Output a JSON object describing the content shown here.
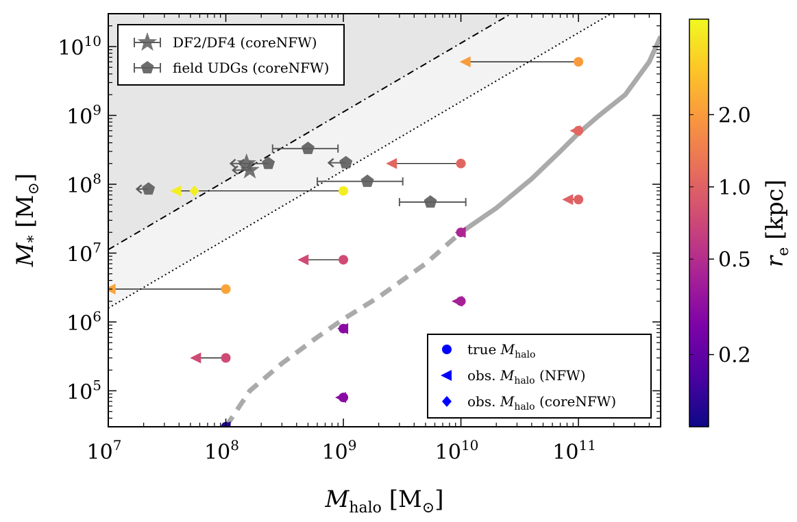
{
  "chart_data": {
    "type": "scatter",
    "title": "",
    "xlabel": "M_halo [M_⊙]",
    "ylabel": "M_* [M_⊙]",
    "xlabel_parts": {
      "main": "M",
      "sub": "halo",
      "unit": " [M",
      "unit_sub": "⊙",
      "close": "]"
    },
    "ylabel_parts": {
      "main": "M",
      "sub": "*",
      "unit": " [M",
      "unit_sub": "⊙",
      "close": "]"
    },
    "xscale": "log",
    "yscale": "log",
    "xlim": [
      10000000.0,
      500000000000.0
    ],
    "ylim": [
      30000.0,
      30000000000.0
    ],
    "x_ticks": [
      {
        "value": 10000000.0,
        "base": "10",
        "exp": "7"
      },
      {
        "value": 100000000.0,
        "base": "10",
        "exp": "8"
      },
      {
        "value": 1000000000.0,
        "base": "10",
        "exp": "9"
      },
      {
        "value": 10000000000.0,
        "base": "10",
        "exp": "10"
      },
      {
        "value": 100000000000.0,
        "base": "10",
        "exp": "11"
      }
    ],
    "y_ticks": [
      {
        "value": 100000.0,
        "base": "10",
        "exp": "5"
      },
      {
        "value": 1000000.0,
        "base": "10",
        "exp": "6"
      },
      {
        "value": 10000000.0,
        "base": "10",
        "exp": "7"
      },
      {
        "value": 100000000.0,
        "base": "10",
        "exp": "8"
      },
      {
        "value": 1000000000.0,
        "base": "10",
        "exp": "9"
      },
      {
        "value": 10000000000.0,
        "base": "10",
        "exp": "10"
      }
    ],
    "colorbar": {
      "label": "r_e [kpc]",
      "label_parts": {
        "main": "r",
        "sub": "e",
        "unit": " [kpc]"
      },
      "scale": "log",
      "range": [
        0.1,
        5.0
      ],
      "ticks": [
        {
          "value": 0.2,
          "label": "0.2"
        },
        {
          "value": 0.5,
          "label": "0.5"
        },
        {
          "value": 1.0,
          "label": "1.0"
        },
        {
          "value": 2.0,
          "label": "2.0"
        }
      ]
    },
    "regions": [
      {
        "name": "upper-region",
        "line_logy_at_x7": 7.05,
        "slope": 1,
        "fill": "#e6e6e6",
        "line_style": "dashdot"
      },
      {
        "name": "middle-region",
        "line_logy_at_x7": 6.2,
        "slope": 1,
        "fill": "#f3f3f3",
        "line_style": "dotted"
      }
    ],
    "relation_curve": {
      "dashed": [
        [
          100000000.0,
          30000.0
        ],
        [
          160000000.0,
          100000.0
        ],
        [
          300000000.0,
          250000.0
        ],
        [
          600000000.0,
          600000.0
        ],
        [
          1000000000.0,
          1100000.0
        ],
        [
          2000000000.0,
          2300000.0
        ],
        [
          5000000000.0,
          7000000.0
        ],
        [
          10000000000.0,
          20000000.0
        ]
      ],
      "solid": [
        [
          10000000000.0,
          20000000.0
        ],
        [
          20000000000.0,
          45000000.0
        ],
        [
          40000000000.0,
          120000000.0
        ],
        [
          70000000000.0,
          300000000.0
        ],
        [
          100000000000.0,
          550000000.0
        ],
        [
          150000000000.0,
          1000000000.0
        ],
        [
          250000000000.0,
          2000000000.0
        ],
        [
          400000000000.0,
          6000000000.0
        ],
        [
          500000000000.0,
          14000000000.0
        ]
      ]
    },
    "series": [
      {
        "name": "true M_halo",
        "marker": "circle",
        "points": [
          {
            "x": 100000000000.0,
            "y": 6000000000.0,
            "re": 2.0
          },
          {
            "x": 100000000000.0,
            "y": 600000000.0,
            "re": 1.05
          },
          {
            "x": 100000000000.0,
            "y": 60000000.0,
            "re": 1.0
          },
          {
            "x": 10000000000.0,
            "y": 200000000.0,
            "re": 1.05
          },
          {
            "x": 10000000000.0,
            "y": 20000000.0,
            "re": 0.45
          },
          {
            "x": 10000000000.0,
            "y": 2000000.0,
            "re": 0.42
          },
          {
            "x": 1000000000.0,
            "y": 80000000.0,
            "re": 4.5
          },
          {
            "x": 1000000000.0,
            "y": 8000000.0,
            "re": 0.75
          },
          {
            "x": 1000000000.0,
            "y": 800000.0,
            "re": 0.3
          },
          {
            "x": 1000000000.0,
            "y": 80000.0,
            "re": 0.3
          },
          {
            "x": 100000000.0,
            "y": 3000000.0,
            "re": 2.2
          },
          {
            "x": 100000000.0,
            "y": 300000.0,
            "re": 0.75
          },
          {
            "x": 100000000.0,
            "y": 30000.0,
            "re": 0.12
          }
        ]
      },
      {
        "name": "obs. M_halo (NFW)",
        "marker": "triangle-left",
        "points": [
          {
            "x": 11000000000.0,
            "y": 6000000000.0,
            "re": 2.0,
            "from": 100000000000.0
          },
          {
            "x": 95000000000.0,
            "y": 600000000.0,
            "re": 1.05,
            "from": 100000000000.0
          },
          {
            "x": 82000000000.0,
            "y": 60000000.0,
            "re": 1.0,
            "from": 100000000000.0
          },
          {
            "x": 2600000000.0,
            "y": 200000000.0,
            "re": 1.05,
            "from": 10000000000.0
          },
          {
            "x": 10000000000.0,
            "y": 20000000.0,
            "re": 0.45,
            "from": 10000000000.0
          },
          {
            "x": 9400000000.0,
            "y": 2000000.0,
            "re": 0.42,
            "from": 10000000000.0
          },
          {
            "x": 38000000.0,
            "y": 80000000.0,
            "re": 4.5,
            "from": 1000000000.0
          },
          {
            "x": 460000000.0,
            "y": 8000000.0,
            "re": 0.75,
            "from": 1000000000.0
          },
          {
            "x": 1000000000.0,
            "y": 800000.0,
            "re": 0.3,
            "from": 1000000000.0
          },
          {
            "x": 960000000.0,
            "y": 80000.0,
            "re": 0.3,
            "from": 1000000000.0
          },
          {
            "x": 10500000.0,
            "y": 3000000.0,
            "re": 2.2,
            "from": 100000000.0
          },
          {
            "x": 56000000.0,
            "y": 300000.0,
            "re": 0.75,
            "from": 100000000.0
          },
          {
            "x": 100000000.0,
            "y": 30000.0,
            "re": 0.12,
            "from": 100000000.0
          }
        ]
      },
      {
        "name": "obs. M_halo (coreNFW)",
        "marker": "diamond",
        "points": [
          {
            "x": 54000000.0,
            "y": 80000000.0,
            "re": 4.5
          }
        ]
      },
      {
        "name": "DF2/DF4 (coreNFW)",
        "marker": "star",
        "color": "#5c5c5c",
        "points": [
          {
            "x": 150000000.0,
            "y": 200000000.0,
            "xlow": 110000000.0
          },
          {
            "x": 160000000.0,
            "y": 160000000.0,
            "xlow": 115000000.0
          }
        ]
      },
      {
        "name": "field UDGs (coreNFW)",
        "marker": "pentagon",
        "color": "#5c5c5c",
        "points": [
          {
            "x": 500000000.0,
            "y": 330000000.0,
            "xlow": 250000000.0,
            "xhigh": 900000000.0
          },
          {
            "x": 230000000.0,
            "y": 200000000.0,
            "xlow": 130000000.0
          },
          {
            "x": 1050000000.0,
            "y": 205000000.0,
            "xlow": 750000000.0
          },
          {
            "x": 22000000.0,
            "y": 85000000.0,
            "xlow": 17500000.0
          },
          {
            "x": 1600000000.0,
            "y": 110000000.0,
            "xlow": 600000000.0,
            "xhigh": 3200000000.0
          },
          {
            "x": 5500000000.0,
            "y": 55000000.0,
            "xlow": 3000000000.0,
            "xhigh": 11000000000.0
          }
        ]
      }
    ],
    "legend_top": {
      "position": "top-left",
      "entries": [
        {
          "label": "DF2/DF4 (coreNFW)",
          "marker": "star"
        },
        {
          "label": "field UDGs (coreNFW)",
          "marker": "pentagon"
        }
      ]
    },
    "legend_bottom": {
      "position": "bottom-right",
      "entries": [
        {
          "label_main": "true ",
          "label_math": "M",
          "label_sub": "halo",
          "label_tail": "",
          "marker": "circle"
        },
        {
          "label_main": "obs. ",
          "label_math": "M",
          "label_sub": "halo",
          "label_tail": " (NFW)",
          "marker": "triangle-left"
        },
        {
          "label_main": "obs. ",
          "label_math": "M",
          "label_sub": "halo",
          "label_tail": " (coreNFW)",
          "marker": "diamond"
        }
      ]
    },
    "colors": {
      "legend_marker": "#0000ff",
      "gray_marker": "#5c5c5c",
      "curve": "#aaaaaa"
    }
  }
}
